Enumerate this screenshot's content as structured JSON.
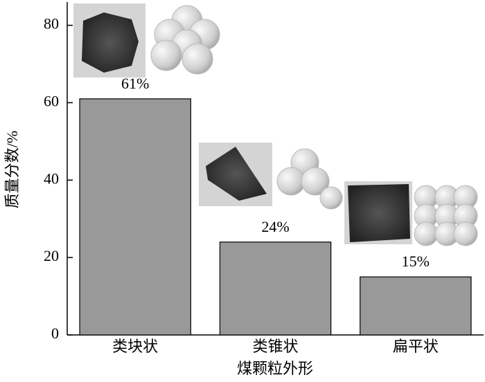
{
  "chart_data": {
    "type": "bar",
    "categories": [
      "类块状",
      "类锥状",
      "扁平状"
    ],
    "values": [
      61,
      24,
      15
    ],
    "value_labels": [
      "61%",
      "24%",
      "15%"
    ],
    "color": "#999999",
    "ylim": [
      0,
      86
    ],
    "yticks": [
      0,
      20,
      40,
      60,
      80
    ],
    "ylabel": "质量分数/%",
    "xlabel": "煤颗粒外形"
  }
}
